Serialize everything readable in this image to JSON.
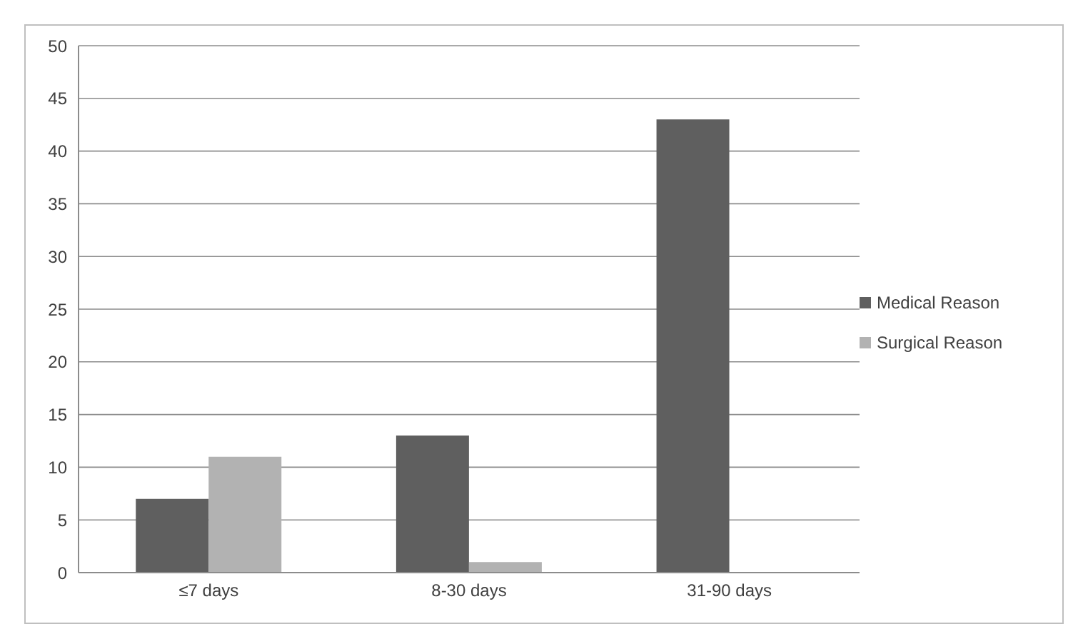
{
  "chart_data": {
    "type": "bar",
    "categories": [
      "≤7 days",
      "8-30 days",
      "31-90 days"
    ],
    "series": [
      {
        "name": "Medical Reason",
        "color": "#5f5f5f",
        "values": [
          7,
          13,
          43
        ]
      },
      {
        "name": "Surgical Reason",
        "color": "#b2b2b2",
        "values": [
          11,
          1,
          0
        ]
      }
    ],
    "ylim": [
      0,
      50
    ],
    "yticks": [
      0,
      5,
      10,
      15,
      20,
      25,
      30,
      35,
      40,
      45,
      50
    ],
    "grid": "y",
    "legend": "right"
  }
}
